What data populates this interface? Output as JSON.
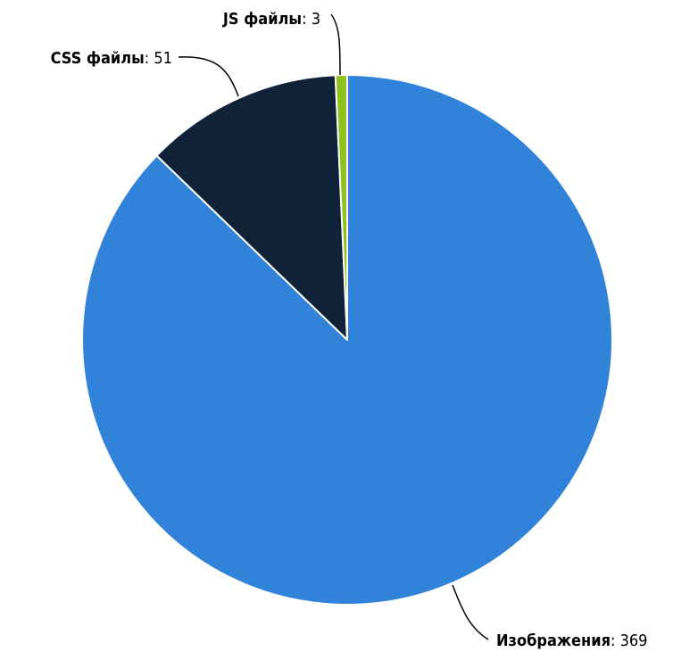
{
  "chart_data": {
    "type": "pie",
    "title": "",
    "series": [
      {
        "slices": [
          {
            "label": "Изображения",
            "value": 369,
            "color": "#3182d9"
          },
          {
            "label": "CSS файлы",
            "value": 51,
            "color": "#0f2237"
          },
          {
            "label": "JS файлы",
            "value": 3,
            "color": "#8ec11e"
          }
        ]
      }
    ],
    "start_angle_deg": 0,
    "direction": "clockwise",
    "legend": "none",
    "data_labels": "outside-with-connectors",
    "label_separator": ": "
  }
}
